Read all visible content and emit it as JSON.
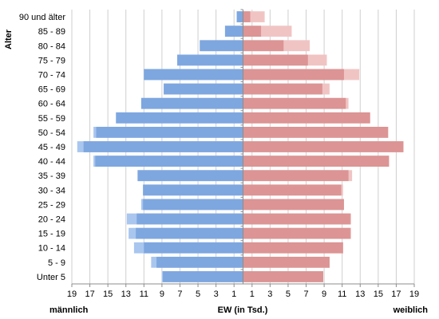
{
  "chart_data": {
    "type": "bar",
    "orientation": "horizontal",
    "subtype": "population-pyramid",
    "ylabel": "Alter",
    "xlabel": "EW (in Tsd.)",
    "left_label": "männlich",
    "right_label": "weiblich",
    "xlim": [
      -19,
      19
    ],
    "x_ticks": [
      -19,
      -17,
      -15,
      -13,
      -11,
      -9,
      -7,
      -5,
      -3,
      -1,
      1,
      3,
      5,
      7,
      9,
      11,
      13,
      15,
      17,
      19
    ],
    "x_tick_labels": [
      "19",
      "17",
      "15",
      "13",
      "11",
      "9",
      "7",
      "5",
      "3",
      "1",
      "1",
      "3",
      "5",
      "7",
      "9",
      "11",
      "13",
      "15",
      "17",
      "19"
    ],
    "categories": [
      "90 und älter",
      "85 - 89",
      "80 - 84",
      "75 - 79",
      "70 - 74",
      "65 - 69",
      "60 - 64",
      "55 - 59",
      "50 - 54",
      "45 - 49",
      "40 - 44",
      "35 - 39",
      "30 - 34",
      "25 - 29",
      "20 - 24",
      "15 - 19",
      "10 - 14",
      "5 - 9",
      "Unter 5"
    ],
    "series": [
      {
        "name": "männlich (hell)",
        "side": "left",
        "color": "#a9c6ef",
        "values": [
          0.7,
          2.0,
          4.8,
          7.3,
          11.0,
          8.8,
          11.3,
          14.1,
          16.6,
          18.4,
          16.6,
          11.7,
          11.1,
          11.3,
          12.9,
          12.7,
          12.1,
          10.2,
          9.0
        ]
      },
      {
        "name": "männlich",
        "side": "left",
        "color": "#7ea7e0",
        "values": [
          0.7,
          2.0,
          4.8,
          7.3,
          11.0,
          8.8,
          11.3,
          14.1,
          16.3,
          17.7,
          16.4,
          11.7,
          11.1,
          11.1,
          11.8,
          11.9,
          11.0,
          9.6,
          8.9
        ]
      },
      {
        "name": "weiblich (hell)",
        "side": "right",
        "color": "#f1c4c4",
        "values": [
          2.4,
          5.4,
          7.4,
          9.3,
          12.9,
          9.6,
          11.7,
          14.1,
          16.1,
          17.8,
          16.2,
          12.1,
          11.1,
          11.2,
          12.0,
          12.0,
          11.1,
          9.6,
          8.9
        ]
      },
      {
        "name": "weiblich",
        "side": "right",
        "color": "#dc9494",
        "values": [
          0.8,
          2.0,
          4.5,
          7.2,
          11.2,
          8.8,
          11.4,
          14.1,
          16.1,
          17.8,
          16.2,
          11.7,
          10.9,
          11.2,
          11.9,
          11.9,
          11.1,
          9.6,
          8.9
        ]
      }
    ]
  }
}
